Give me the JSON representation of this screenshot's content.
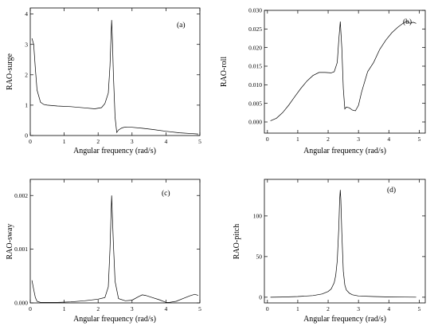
{
  "chart_data": [
    {
      "type": "line",
      "tag": "(a)",
      "xlabel": "Angular frequency (rad/s)",
      "ylabel": "RAO-surge",
      "xlim": [
        0,
        5
      ],
      "ylim": [
        0,
        4.2
      ],
      "xticks": [
        0,
        1,
        2,
        3,
        4,
        5
      ],
      "xtick_labels": [
        "0",
        "1",
        "2",
        "3",
        "4",
        "5"
      ],
      "yticks": [
        0,
        1,
        2,
        3,
        4
      ],
      "ytick_labels": [
        "0",
        "1",
        "2",
        "3",
        "4"
      ],
      "x": [
        0.05,
        0.1,
        0.15,
        0.2,
        0.3,
        0.4,
        0.5,
        0.8,
        1.2,
        1.6,
        1.9,
        2.1,
        2.2,
        2.3,
        2.35,
        2.4,
        2.42,
        2.45,
        2.5,
        2.55,
        2.6,
        2.7,
        2.8,
        3.0,
        3.3,
        3.6,
        4.0,
        4.4,
        4.8,
        4.95
      ],
      "y": [
        3.2,
        3.0,
        2.2,
        1.5,
        1.1,
        1.02,
        1.0,
        0.97,
        0.95,
        0.91,
        0.88,
        0.92,
        1.05,
        1.4,
        2.3,
        3.8,
        3.2,
        2.0,
        0.6,
        0.1,
        0.18,
        0.25,
        0.28,
        0.27,
        0.24,
        0.2,
        0.14,
        0.09,
        0.06,
        0.05
      ]
    },
    {
      "type": "line",
      "tag": "(b)",
      "xlabel": "Angular frequency (rad/s)",
      "ylabel": "RAO-roll",
      "xlim": [
        -0.1,
        5.2
      ],
      "ylim": [
        -0.003,
        0.03
      ],
      "xticks": [
        0,
        1,
        2,
        3,
        4,
        5
      ],
      "xtick_labels": [
        "0",
        "1",
        "2",
        "3",
        "4",
        "5"
      ],
      "yticks": [
        0.0,
        0.005,
        0.01,
        0.015,
        0.02,
        0.025,
        0.03
      ],
      "ytick_labels": [
        "0.000",
        "0.005",
        "0.010",
        "0.015",
        "0.020",
        "0.025",
        "0.030"
      ],
      "x": [
        0.1,
        0.3,
        0.5,
        0.7,
        0.9,
        1.1,
        1.3,
        1.5,
        1.7,
        1.9,
        2.1,
        2.2,
        2.3,
        2.35,
        2.4,
        2.45,
        2.5,
        2.55,
        2.6,
        2.7,
        2.8,
        2.9,
        3.0,
        3.1,
        3.3,
        3.5,
        3.7,
        3.9,
        4.1,
        4.3,
        4.5,
        4.6,
        4.7,
        4.8,
        4.9
      ],
      "y": [
        0.0003,
        0.001,
        0.0025,
        0.0045,
        0.0068,
        0.009,
        0.011,
        0.0125,
        0.0133,
        0.0133,
        0.0132,
        0.0135,
        0.016,
        0.022,
        0.027,
        0.02,
        0.009,
        0.0035,
        0.004,
        0.0038,
        0.0032,
        0.003,
        0.0045,
        0.008,
        0.0135,
        0.016,
        0.0195,
        0.022,
        0.024,
        0.0255,
        0.0267,
        0.027,
        0.0265,
        0.0268,
        0.0265
      ]
    },
    {
      "type": "line",
      "tag": "(c)",
      "xlabel": "Angular frequency (rad/s)",
      "ylabel": "RAO-sway",
      "xlim": [
        0,
        5
      ],
      "ylim": [
        0,
        0.0023
      ],
      "xticks": [
        0,
        1,
        2,
        3,
        4,
        5
      ],
      "xtick_labels": [
        "0",
        "1",
        "2",
        "3",
        "4",
        "5"
      ],
      "yticks": [
        0,
        0.001,
        0.002
      ],
      "ytick_labels": [
        "0.000",
        "0.001",
        "0.002"
      ],
      "x": [
        0.05,
        0.1,
        0.15,
        0.2,
        0.3,
        0.5,
        0.8,
        1.2,
        1.6,
        2.0,
        2.2,
        2.3,
        2.35,
        2.4,
        2.45,
        2.5,
        2.6,
        2.8,
        3.0,
        3.2,
        3.3,
        3.4,
        3.6,
        3.8,
        4.0,
        4.1,
        4.3,
        4.5,
        4.7,
        4.85,
        4.95
      ],
      "y": [
        0.00042,
        0.00025,
        0.0001,
        3e-05,
        1e-05,
        1e-05,
        1e-05,
        2e-05,
        4e-05,
        7e-05,
        0.0001,
        0.0003,
        0.001,
        0.002,
        0.0011,
        0.0004,
        8e-05,
        4e-05,
        5e-05,
        0.00012,
        0.00015,
        0.00014,
        0.0001,
        6e-05,
        1e-05,
        1e-05,
        3e-05,
        8e-05,
        0.00013,
        0.00016,
        0.00014
      ]
    },
    {
      "type": "line",
      "tag": "(d)",
      "xlabel": "Angular frequency (rad/s)",
      "ylabel": "RAO-pitch",
      "xlim": [
        -0.1,
        5.2
      ],
      "ylim": [
        -7,
        145
      ],
      "xticks": [
        0,
        1,
        2,
        3,
        4,
        5
      ],
      "xtick_labels": [
        "0",
        "1",
        "2",
        "3",
        "4",
        "5"
      ],
      "yticks": [
        0,
        50,
        100
      ],
      "ytick_labels": [
        "0",
        "50",
        "100"
      ],
      "x": [
        0.1,
        0.5,
        1.0,
        1.5,
        1.8,
        2.0,
        2.1,
        2.2,
        2.25,
        2.3,
        2.35,
        2.38,
        2.4,
        2.42,
        2.45,
        2.5,
        2.55,
        2.6,
        2.7,
        2.8,
        3.0,
        3.5,
        4.0,
        4.5,
        4.9
      ],
      "y": [
        0,
        0.3,
        0.8,
        2,
        4,
        7,
        10,
        18,
        27,
        45,
        85,
        120,
        132,
        120,
        80,
        32,
        15,
        9,
        5,
        3,
        1.5,
        0.8,
        0.4,
        0.2,
        0.1
      ]
    }
  ]
}
